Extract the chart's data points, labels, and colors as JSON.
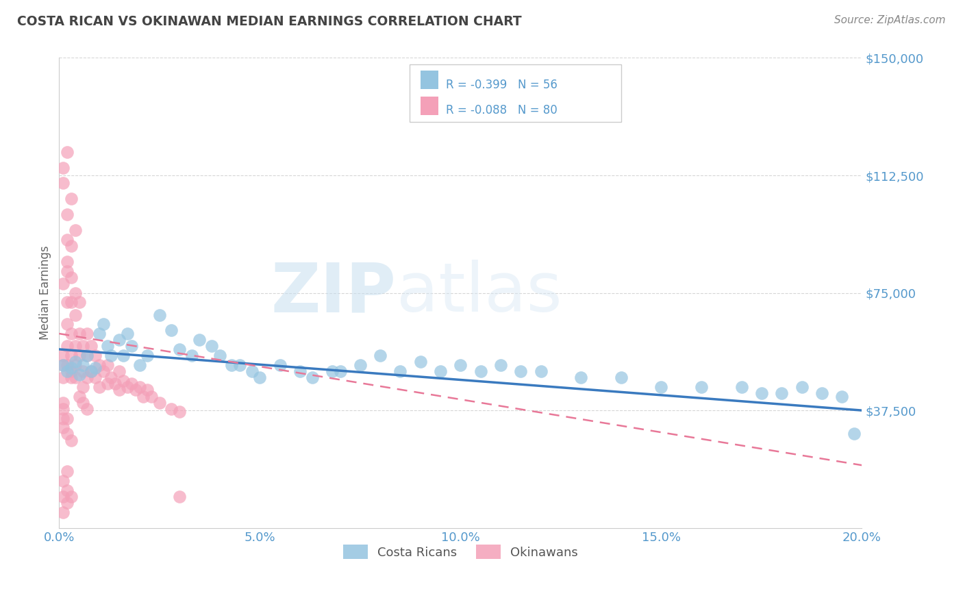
{
  "title": "COSTA RICAN VS OKINAWAN MEDIAN EARNINGS CORRELATION CHART",
  "source": "Source: ZipAtlas.com",
  "ylabel": "Median Earnings",
  "x_min": 0.0,
  "x_max": 0.2,
  "y_min": 0,
  "y_max": 150000,
  "y_ticks": [
    37500,
    75000,
    112500,
    150000
  ],
  "y_tick_labels": [
    "$37,500",
    "$75,000",
    "$112,500",
    "$150,000"
  ],
  "x_ticks": [
    0.0,
    0.05,
    0.1,
    0.15,
    0.2
  ],
  "x_tick_labels": [
    "0.0%",
    "5.0%",
    "10.0%",
    "15.0%",
    "20.0%"
  ],
  "watermark_zip": "ZIP",
  "watermark_atlas": "atlas",
  "blue_color": "#94c4e0",
  "pink_color": "#f4a0b8",
  "blue_line_color": "#3a7abf",
  "pink_line_color": "#e87898",
  "grid_color": "#cccccc",
  "background_color": "#ffffff",
  "title_color": "#444444",
  "axis_label_color": "#5599cc",
  "source_color": "#888888",
  "ylabel_color": "#666666",
  "legend_border_color": "#cccccc",
  "blue_scatter_x": [
    0.001,
    0.002,
    0.003,
    0.004,
    0.005,
    0.006,
    0.007,
    0.008,
    0.009,
    0.01,
    0.011,
    0.012,
    0.013,
    0.015,
    0.016,
    0.017,
    0.018,
    0.02,
    0.022,
    0.025,
    0.028,
    0.03,
    0.033,
    0.035,
    0.038,
    0.04,
    0.043,
    0.045,
    0.048,
    0.05,
    0.055,
    0.06,
    0.063,
    0.068,
    0.07,
    0.075,
    0.08,
    0.085,
    0.09,
    0.095,
    0.1,
    0.105,
    0.11,
    0.115,
    0.12,
    0.13,
    0.14,
    0.15,
    0.16,
    0.17,
    0.175,
    0.18,
    0.185,
    0.19,
    0.195,
    0.198
  ],
  "blue_scatter_y": [
    52000,
    50000,
    51000,
    53000,
    49000,
    52000,
    55000,
    50000,
    51000,
    62000,
    65000,
    58000,
    55000,
    60000,
    55000,
    62000,
    58000,
    52000,
    55000,
    68000,
    63000,
    57000,
    55000,
    60000,
    58000,
    55000,
    52000,
    52000,
    50000,
    48000,
    52000,
    50000,
    48000,
    50000,
    50000,
    52000,
    55000,
    50000,
    53000,
    50000,
    52000,
    50000,
    52000,
    50000,
    50000,
    48000,
    48000,
    45000,
    45000,
    45000,
    43000,
    43000,
    45000,
    43000,
    42000,
    30000
  ],
  "pink_scatter_x": [
    0.001,
    0.001,
    0.001,
    0.001,
    0.002,
    0.002,
    0.002,
    0.002,
    0.002,
    0.003,
    0.003,
    0.003,
    0.003,
    0.004,
    0.004,
    0.004,
    0.004,
    0.005,
    0.005,
    0.005,
    0.006,
    0.006,
    0.006,
    0.007,
    0.007,
    0.007,
    0.008,
    0.008,
    0.009,
    0.009,
    0.01,
    0.01,
    0.011,
    0.012,
    0.012,
    0.013,
    0.014,
    0.015,
    0.015,
    0.016,
    0.017,
    0.018,
    0.019,
    0.02,
    0.021,
    0.022,
    0.023,
    0.025,
    0.028,
    0.03,
    0.001,
    0.002,
    0.003,
    0.004,
    0.001,
    0.002,
    0.003,
    0.002,
    0.003,
    0.004,
    0.005,
    0.006,
    0.007,
    0.001,
    0.002,
    0.001,
    0.002,
    0.003,
    0.002,
    0.001,
    0.03,
    0.003,
    0.002,
    0.001,
    0.001,
    0.001,
    0.002,
    0.003,
    0.001,
    0.002
  ],
  "pink_scatter_y": [
    52000,
    55000,
    48000,
    78000,
    82000,
    72000,
    65000,
    92000,
    58000,
    62000,
    72000,
    55000,
    50000,
    68000,
    58000,
    52000,
    48000,
    72000,
    62000,
    55000,
    58000,
    50000,
    45000,
    62000,
    55000,
    48000,
    58000,
    50000,
    55000,
    48000,
    52000,
    45000,
    50000,
    52000,
    46000,
    48000,
    46000,
    50000,
    44000,
    47000,
    45000,
    46000,
    44000,
    45000,
    42000,
    44000,
    42000,
    40000,
    38000,
    37000,
    115000,
    120000,
    105000,
    95000,
    110000,
    100000,
    90000,
    85000,
    80000,
    75000,
    42000,
    40000,
    38000,
    10000,
    8000,
    15000,
    12000,
    10000,
    18000,
    5000,
    10000,
    48000,
    52000,
    38000,
    35000,
    32000,
    30000,
    28000,
    40000,
    35000
  ],
  "blue_line_x0": 0.0,
  "blue_line_y0": 57000,
  "blue_line_x1": 0.2,
  "blue_line_y1": 37500,
  "pink_line_x0": 0.0,
  "pink_line_y0": 62000,
  "pink_line_x1": 0.2,
  "pink_line_y1": 20000
}
